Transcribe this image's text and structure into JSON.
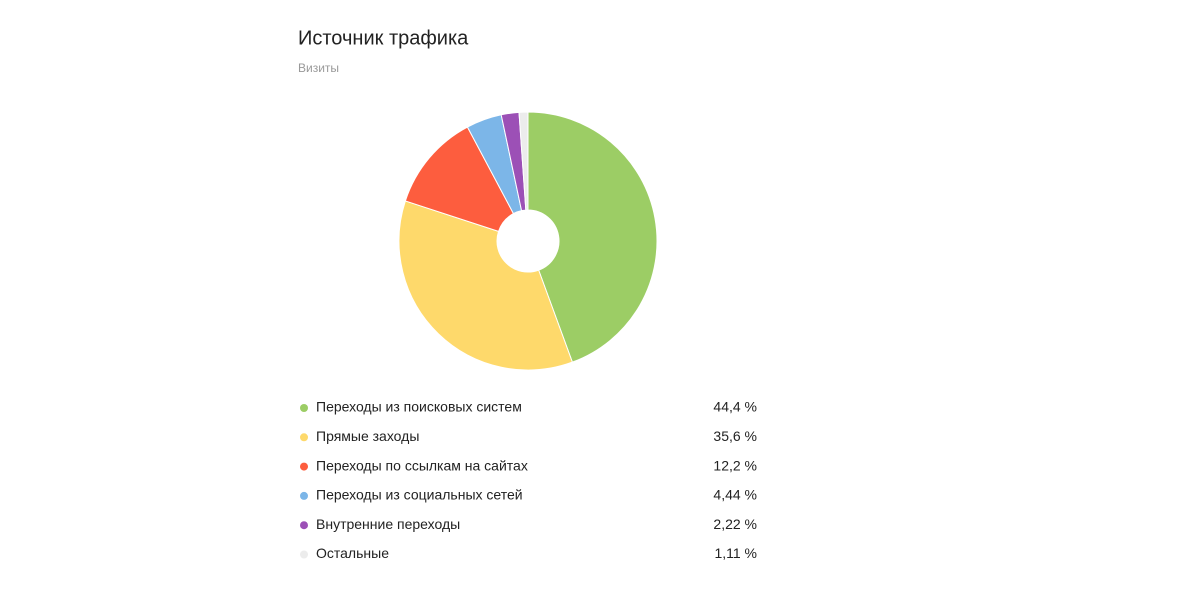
{
  "chart_data": {
    "type": "pie",
    "title": "Источник трафика",
    "subtitle": "Визиты",
    "categories": [
      "Переходы из поисковых систем",
      "Прямые заходы",
      "Переходы по ссылкам на сайтах",
      "Переходы из социальных сетей",
      "Внутренние переходы",
      "Остальные"
    ],
    "values": [
      44.4,
      35.6,
      12.2,
      4.44,
      2.22,
      1.11
    ],
    "value_labels": [
      "44,4 %",
      "35,6 %",
      "12,2 %",
      "4,44 %",
      "2,22 %",
      "1,11 %"
    ],
    "colors": [
      "#9ccd65",
      "#fed96b",
      "#fd5d3e",
      "#7cb6e8",
      "#9c50b6",
      "#ececec"
    ]
  }
}
